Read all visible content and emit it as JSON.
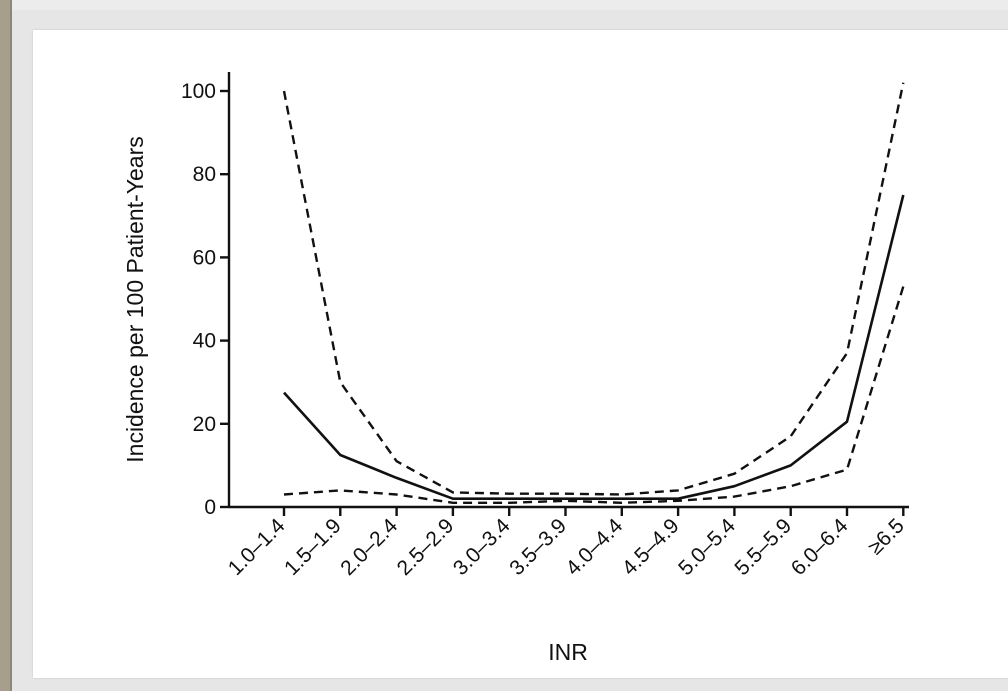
{
  "chart_data": {
    "type": "line",
    "title": "",
    "xlabel": "INR",
    "ylabel": "Incidence per 100 Patient-Years",
    "categories": [
      "1.0–1.4",
      "1.5–1.9",
      "2.0–2.4",
      "2.5–2.9",
      "3.0–3.4",
      "3.5–3.9",
      "4.0–4.4",
      "4.5–4.9",
      "5.0–5.4",
      "5.5–5.9",
      "6.0–6.4",
      "≥6.5"
    ],
    "ylim": [
      0,
      100
    ],
    "yticks": [
      "0",
      "20",
      "40",
      "60",
      "80",
      "100"
    ],
    "grid": false,
    "legend": "none",
    "series": [
      {
        "style": "solid",
        "values": [
          27.5,
          12.5,
          7,
          2,
          2,
          2,
          2,
          2,
          5,
          10,
          20.5,
          75
        ]
      },
      {
        "style": "dashed",
        "values": [
          100,
          30,
          11,
          3.5,
          3.2,
          3.2,
          3,
          4,
          8,
          17,
          37,
          102
        ]
      },
      {
        "style": "dashed",
        "values": [
          3,
          4,
          3,
          1,
          1,
          1.5,
          1,
          1.5,
          2.5,
          5,
          9,
          53
        ]
      }
    ]
  }
}
